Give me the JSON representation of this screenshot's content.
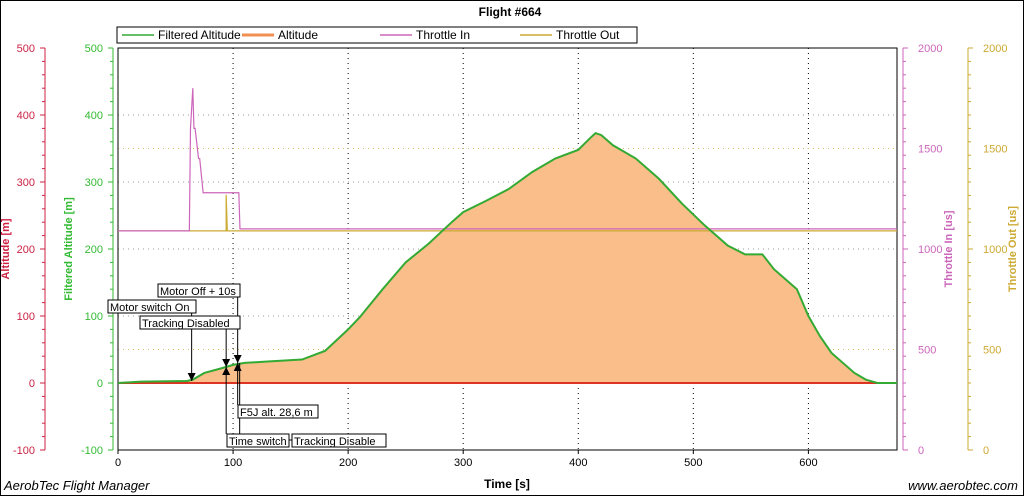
{
  "footer": {
    "left": "AerobTec Flight Manager",
    "right": "www.aerobtec.com"
  },
  "chart_data": {
    "type": "line",
    "title": "Flight #664",
    "xlabel": "Time [s]",
    "xlim": [
      0,
      677
    ],
    "xticks": [
      0,
      100,
      200,
      300,
      400,
      500,
      600
    ],
    "axes": [
      {
        "label": "Altitude [m]",
        "side": "left-outer",
        "color": "#cc2244",
        "range": [
          -100,
          500
        ],
        "ticks": [
          -100,
          0,
          100,
          200,
          300,
          400,
          500
        ]
      },
      {
        "label": "Filtered Altitude [m]",
        "side": "left-inner",
        "color": "#33bb33",
        "range": [
          -100,
          500
        ],
        "ticks": [
          -100,
          0,
          100,
          200,
          300,
          400,
          500
        ]
      },
      {
        "label": "Throttle In [us]",
        "side": "right-inner",
        "color": "#cc66bb",
        "range": [
          0,
          2000
        ],
        "ticks": [
          0,
          500,
          1000,
          1500,
          2000
        ]
      },
      {
        "label": "Throttle Out [us]",
        "side": "right-outer",
        "color": "#ccaa33",
        "range": [
          0,
          2000
        ],
        "ticks": [
          0,
          500,
          1000,
          1500,
          2000
        ]
      }
    ],
    "grid": true,
    "legend_placement": "top",
    "series": [
      {
        "name": "Filtered Altitude",
        "axis": 0,
        "color": "#33aa33",
        "fill": "#f9be8a",
        "x": [
          0,
          20,
          60,
          65,
          75,
          90,
          100,
          110,
          130,
          160,
          180,
          200,
          210,
          230,
          250,
          270,
          290,
          300,
          320,
          340,
          360,
          380,
          400,
          410,
          415,
          420,
          430,
          450,
          470,
          490,
          510,
          530,
          545,
          560,
          570,
          590,
          600,
          610,
          620,
          640,
          650,
          660,
          677
        ],
        "y": [
          0,
          2,
          3,
          5,
          15,
          22,
          27,
          30,
          32,
          35,
          48,
          80,
          98,
          140,
          180,
          208,
          240,
          255,
          272,
          290,
          315,
          335,
          348,
          365,
          373,
          370,
          355,
          335,
          305,
          268,
          235,
          205,
          192,
          192,
          170,
          140,
          100,
          70,
          45,
          15,
          5,
          0,
          0
        ]
      },
      {
        "name": "Altitude",
        "axis": 0,
        "color": "#dd3322",
        "x": [
          0,
          677
        ],
        "y": [
          0,
          0
        ]
      },
      {
        "name": "Throttle In",
        "axis": 2,
        "color": "#cc66bb",
        "x": [
          0,
          62,
          63,
          65,
          66,
          67,
          70,
          71,
          74,
          75,
          105,
          106,
          677
        ],
        "y": [
          1090,
          1090,
          1600,
          1800,
          1600,
          1600,
          1450,
          1450,
          1280,
          1280,
          1280,
          1100,
          1100
        ]
      },
      {
        "name": "Throttle Out",
        "axis": 3,
        "color": "#ccaa33",
        "x": [
          0,
          94,
          94,
          95,
          677
        ],
        "y": [
          1090,
          1090,
          1270,
          1090,
          1090
        ]
      }
    ],
    "annotations": [
      {
        "label": "Motor switch On",
        "t": 64
      },
      {
        "label": "Tracking Disabled",
        "t": 94
      },
      {
        "label": "Motor Off + 10s",
        "t": 104
      },
      {
        "label": "F5J alt. 28,6 m",
        "t": 104
      },
      {
        "label": "Time switch",
        "t": 94
      },
      {
        "label": "Tracking Disable",
        "t": 104
      }
    ]
  }
}
